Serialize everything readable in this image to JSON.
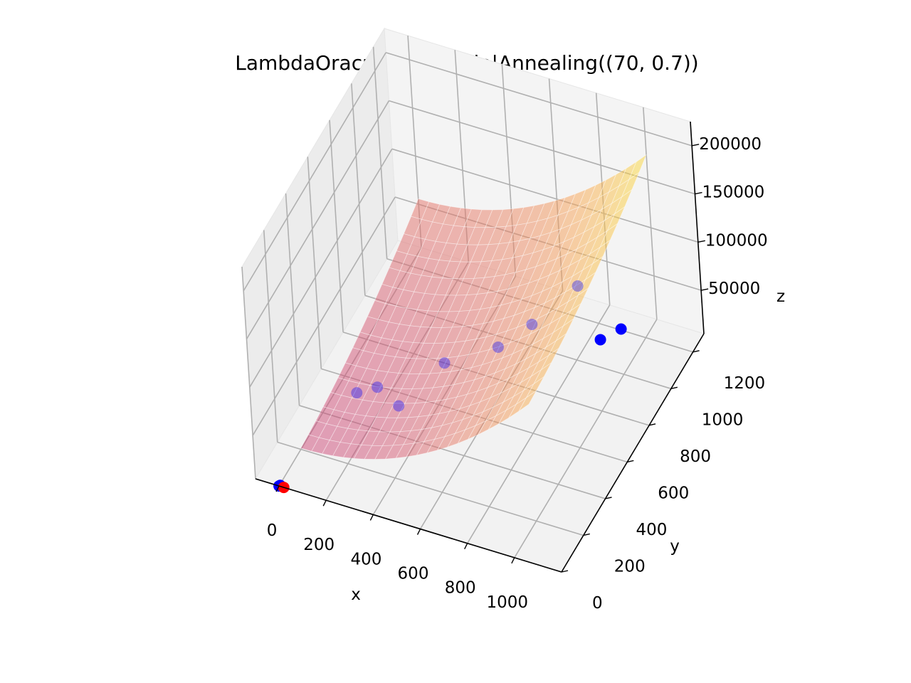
{
  "chart_data": {
    "type": "scatter",
    "title": "LambdaOracul | Schedule|Annealing((70, 0.7))",
    "xlabel": "x",
    "ylabel": "y",
    "zlabel": "z",
    "x_ticks": [
      "0",
      "200",
      "400",
      "600",
      "800",
      "1000"
    ],
    "y_ticks": [
      "0",
      "200",
      "400",
      "600",
      "800",
      "1000",
      "1200"
    ],
    "z_ticks": [
      "50000",
      "100000",
      "150000",
      "200000"
    ],
    "xlim": [
      -100,
      1200
    ],
    "ylim": [
      0,
      1300
    ],
    "zlim": [
      5000,
      225000
    ],
    "grid": true,
    "surface": {
      "colormap": "plasma",
      "x_range": [
        0,
        1000
      ],
      "y_range": [
        200,
        1300
      ],
      "alpha": 0.5
    },
    "points": {
      "color": "#0000ff",
      "x": [
        0,
        5,
        100,
        180,
        320,
        420,
        620,
        720,
        850,
        960,
        1000
      ],
      "y": [
        0,
        0,
        500,
        520,
        420,
        630,
        700,
        800,
        950,
        900,
        1000
      ],
      "z": [
        5000,
        6000,
        14000,
        22000,
        32000,
        44000,
        62000,
        74000,
        95000,
        57000,
        52000
      ]
    },
    "highlight_point": {
      "color": "#ff0000",
      "x": 20,
      "y": 0,
      "z": 5000
    }
  }
}
